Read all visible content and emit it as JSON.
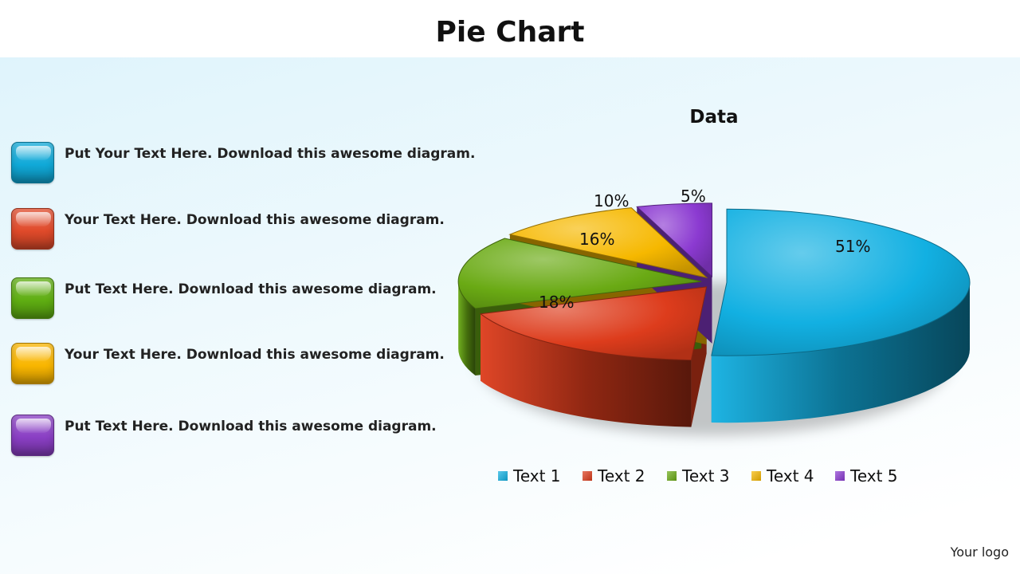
{
  "page": {
    "title": "Pie Chart",
    "logo_text": "Your logo"
  },
  "text_items": [
    {
      "text": "Put Your Text Here. Download this awesome diagram.",
      "color": "#10a9d8"
    },
    {
      "text": "Your Text Here. Download this awesome diagram.",
      "color": "#e04a2a"
    },
    {
      "text": "Put Text Here. Download this awesome diagram.",
      "color": "#5fae12"
    },
    {
      "text": "Your Text Here. Download this awesome diagram.",
      "color": "#f9b600"
    },
    {
      "text": "Put Text Here. Download this awesome diagram.",
      "color": "#8a3fc4"
    }
  ],
  "chart_data": {
    "type": "pie",
    "style": "3d-exploded",
    "title": "Data",
    "legend_position": "bottom",
    "slices": [
      {
        "label": "Text 1",
        "value": 51,
        "data_label": "51%",
        "color": "#12b0e2"
      },
      {
        "label": "Text 2",
        "value": 18,
        "data_label": "18%",
        "color": "#dd3c1c"
      },
      {
        "label": "Text 3",
        "value": 16,
        "data_label": "16%",
        "color": "#6aaa14"
      },
      {
        "label": "Text 4",
        "value": 10,
        "data_label": "10%",
        "color": "#f6b800"
      },
      {
        "label": "Text 5",
        "value": 5,
        "data_label": "5%",
        "color": "#8b3ad1"
      }
    ]
  }
}
